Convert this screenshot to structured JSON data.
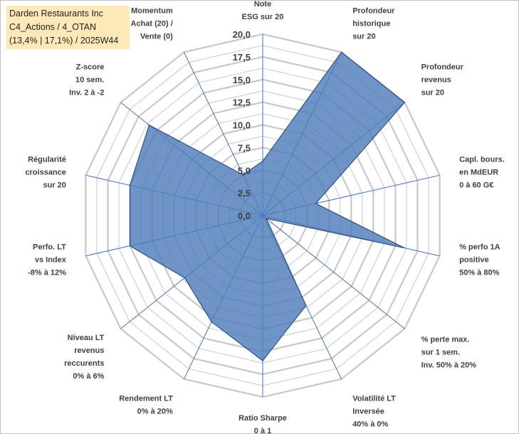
{
  "title_box": {
    "line1": "Darden Restaurants Inc",
    "line2": "C4_Actions / 4_OTAN",
    "line3": "(13,4% | 17,1%) / 2025W44"
  },
  "colors": {
    "fill": "#4f7cba",
    "stroke": "#2f4f8a",
    "grid": "#c8c8c8",
    "spoke": "#4472c4",
    "title_bg": "#fde9b8"
  },
  "chart_data": {
    "type": "radar",
    "title": "Darden Restaurants Inc",
    "rlim": [
      0,
      20
    ],
    "ticks": [
      "0,0",
      "2,5",
      "5,0",
      "7,5",
      "10,0",
      "12,5",
      "15,0",
      "17,5",
      "20,0"
    ],
    "tick_values": [
      0,
      2.5,
      5,
      7.5,
      10,
      12.5,
      15,
      17.5,
      20
    ],
    "axes": [
      {
        "label": [
          "Note",
          "ESG sur 20"
        ],
        "value": 6
      },
      {
        "label": [
          "Profondeur",
          "historique",
          "sur 20"
        ],
        "value": 20
      },
      {
        "label": [
          "Profondeur",
          "revenus",
          "sur 20"
        ],
        "value": 20
      },
      {
        "label": [
          "Capl. bours.",
          "en MdEUR",
          "0 à 60 G€"
        ],
        "value": 6
      },
      {
        "label": [
          "% perfo 1A",
          "positive",
          "50% à 80%"
        ],
        "value": 16
      },
      {
        "label": [
          "% perte max.",
          "sur 1 sem.",
          "Inv. 50% à 20%"
        ],
        "value": 0.5
      },
      {
        "label": [
          "Volatilité LT",
          "Inversée",
          "40% à 0%"
        ],
        "value": 11
      },
      {
        "label": [
          "Ratio Sharpe",
          "0 à 1"
        ],
        "value": 16
      },
      {
        "label": [
          "Rendement LT",
          "0% à 20%"
        ],
        "value": 13
      },
      {
        "label": [
          "Niveau LT",
          "revenus",
          "reccurents",
          "0% à 6%"
        ],
        "value": 11
      },
      {
        "label": [
          "Perfo. LT",
          "vs Index",
          "-8% à 12%"
        ],
        "value": 15
      },
      {
        "label": [
          "Régularité",
          "croissance",
          "sur 20"
        ],
        "value": 15
      },
      {
        "label": [
          "Z-score",
          "10 sem.",
          "Inv. 2 à -2"
        ],
        "value": 16
      },
      {
        "label": [
          "Momentum",
          "Achat (20) /",
          "Vente (0)"
        ],
        "value": 5
      }
    ]
  }
}
